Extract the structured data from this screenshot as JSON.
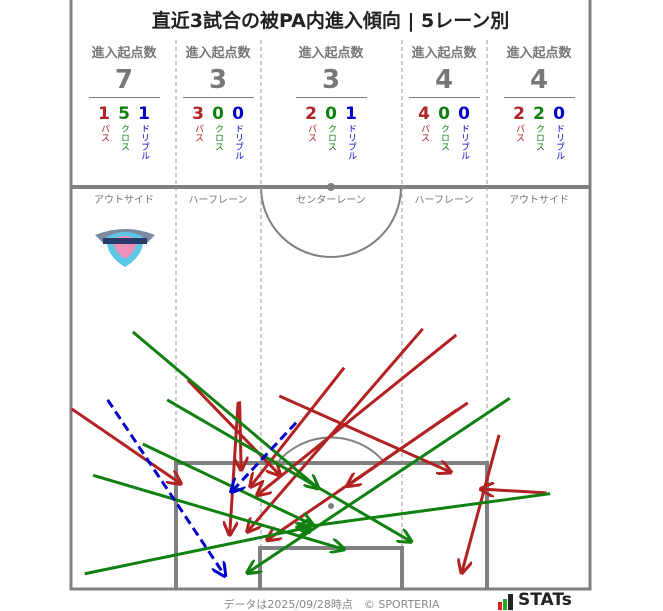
{
  "title": "直近3試合の被PA内進入傾向 | 5レーン別",
  "header_label": "進入起点数",
  "type_labels": {
    "pass": "パス",
    "cross": "クロス",
    "dribble": "ドリブル"
  },
  "colors": {
    "pass": "#b22222",
    "cross": "#108010",
    "dribble": "#0000cc",
    "pitch": "#808080"
  },
  "lanes": [
    {
      "name": "アウトサイド",
      "total": "7",
      "pass": "1",
      "cross": "5",
      "dribble": "1"
    },
    {
      "name": "ハーフレーン",
      "total": "3",
      "pass": "3",
      "cross": "0",
      "dribble": "0"
    },
    {
      "name": "センターレーン",
      "total": "3",
      "pass": "2",
      "cross": "0",
      "dribble": "1"
    },
    {
      "name": "ハーフレーン",
      "total": "4",
      "pass": "4",
      "cross": "0",
      "dribble": "0"
    },
    {
      "name": "アウトサイド",
      "total": "4",
      "pass": "2",
      "cross": "2",
      "dribble": "0"
    }
  ],
  "team_logo": "sagantosu",
  "chart_data": {
    "type": "scatter",
    "units": "meters (x from left touchline, y from goal line)",
    "arrows": [
      {
        "type": "pass",
        "from": [
          0.1,
          23.6
        ],
        "to": [
          14.4,
          13.8
        ]
      },
      {
        "type": "pass",
        "from": [
          15.3,
          27.4
        ],
        "to": [
          27.4,
          14.9
        ]
      },
      {
        "type": "pass",
        "from": [
          22.1,
          24.6
        ],
        "to": [
          22.3,
          15.6
        ]
      },
      {
        "type": "pass",
        "from": [
          21.9,
          24.5
        ],
        "to": [
          20.8,
          7.1
        ]
      },
      {
        "type": "pass",
        "from": [
          35.8,
          29.0
        ],
        "to": [
          23.5,
          13.4
        ]
      },
      {
        "type": "pass",
        "from": [
          46.1,
          34.1
        ],
        "to": [
          23.1,
          7.5
        ]
      },
      {
        "type": "pass",
        "from": [
          50.5,
          33.3
        ],
        "to": [
          24.4,
          12.3
        ]
      },
      {
        "type": "pass",
        "from": [
          27.3,
          25.3
        ],
        "to": [
          49.8,
          15.3
        ]
      },
      {
        "type": "pass",
        "from": [
          52.0,
          24.4
        ],
        "to": [
          25.7,
          6.4
        ]
      },
      {
        "type": "pass",
        "from": [
          50.6,
          23.5
        ],
        "to": [
          36.2,
          13.5
        ]
      },
      {
        "type": "pass",
        "from": [
          56.1,
          20.2
        ],
        "to": [
          51.2,
          2.1
        ]
      },
      {
        "type": "pass",
        "from": [
          62.3,
          12.6
        ],
        "to": [
          53.7,
          13.1
        ]
      },
      {
        "type": "cross",
        "from": [
          8.1,
          33.7
        ],
        "to": [
          32.4,
          13.2
        ]
      },
      {
        "type": "cross",
        "from": [
          12.6,
          24.8
        ],
        "to": [
          44.6,
          6.2
        ]
      },
      {
        "type": "cross",
        "from": [
          9.4,
          19.0
        ],
        "to": [
          31.7,
          8.4
        ]
      },
      {
        "type": "cross",
        "from": [
          2.9,
          14.9
        ],
        "to": [
          35.8,
          5.2
        ]
      },
      {
        "type": "cross",
        "from": [
          1.8,
          2.0
        ],
        "to": [
          31.3,
          8.1
        ]
      },
      {
        "type": "cross",
        "from": [
          57.5,
          25.0
        ],
        "to": [
          23.1,
          2.1
        ]
      },
      {
        "type": "cross",
        "from": [
          62.8,
          12.5
        ],
        "to": [
          29.6,
          8.0
        ]
      },
      {
        "type": "dribble",
        "from": [
          4.8,
          24.8
        ],
        "to": [
          20.2,
          1.7
        ]
      },
      {
        "type": "dribble",
        "from": [
          29.5,
          21.8
        ],
        "to": [
          21.0,
          12.7
        ]
      }
    ]
  },
  "footer": "データは2025/09/28時点　© SPORTERIA",
  "brand": "STATs"
}
